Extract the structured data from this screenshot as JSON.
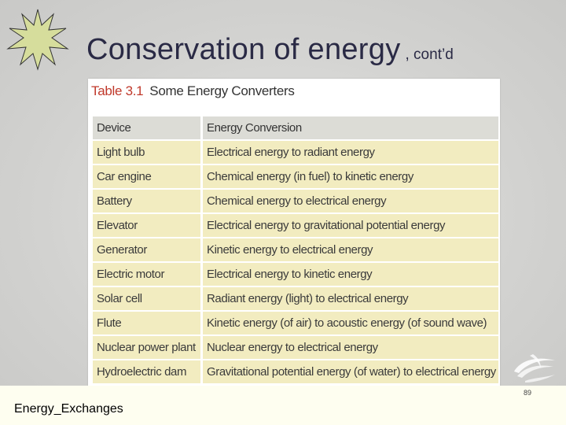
{
  "slide": {
    "title_main": "Conservation of energy",
    "title_sub": ", cont’d",
    "footer_label": "Energy_Exchanges",
    "page_number": "89"
  },
  "table": {
    "caption_number": "Table 3.1",
    "caption_text": "Some Energy Converters",
    "headers": [
      "Device",
      "Energy Conversion"
    ],
    "rows": [
      [
        "Light bulb",
        "Electrical energy to radiant energy"
      ],
      [
        "Car engine",
        "Chemical energy (in fuel) to kinetic energy"
      ],
      [
        "Battery",
        "Chemical energy to electrical energy"
      ],
      [
        "Elevator",
        "Electrical energy to gravitational potential energy"
      ],
      [
        "Generator",
        "Kinetic energy to electrical energy"
      ],
      [
        "Electric motor",
        "Electrical energy to kinetic energy"
      ],
      [
        "Solar cell",
        "Radiant energy (light) to electrical energy"
      ],
      [
        "Flute",
        "Kinetic energy (of air) to acoustic energy (of sound wave)"
      ],
      [
        "Nuclear power plant",
        "Nuclear energy to electrical energy"
      ],
      [
        "Hydroelectric dam",
        "Gravitational potential energy (of water) to electrical energy"
      ]
    ]
  },
  "colors": {
    "title": "#2a2a45",
    "caption_number": "#c0392b",
    "row_fill": "#f2ecc0",
    "header_fill": "#dcdcd6",
    "star_fill": "#d6dd9c"
  },
  "icons": {
    "corner": "starburst-icon",
    "watermark": "swirl-logo-icon"
  }
}
